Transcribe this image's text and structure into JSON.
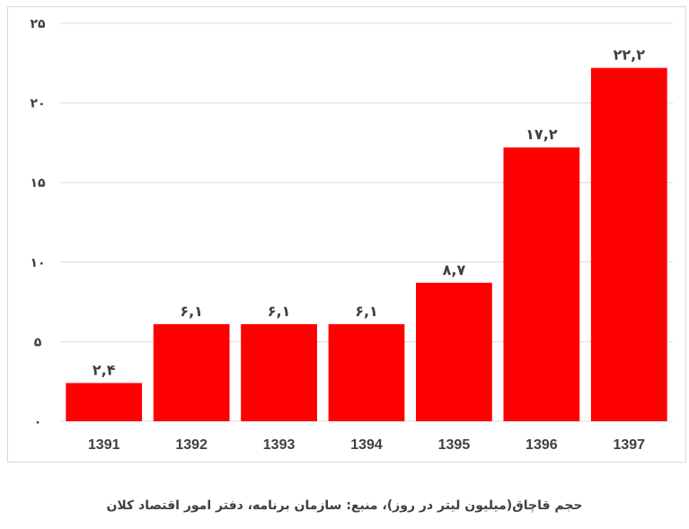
{
  "caption": "حجم قاچاق(میلیون لیتر در روز)، منبع: سازمان برنامه، دفتر امور اقتصاد کلان",
  "colors": {
    "bar": "#ff0000",
    "grid": "#d9d9d9",
    "text": "#404040"
  },
  "chart_data": {
    "type": "bar",
    "categories": [
      "1391",
      "1392",
      "1393",
      "1394",
      "1395",
      "1396",
      "1397"
    ],
    "values": [
      2.4,
      6.1,
      6.1,
      6.1,
      8.7,
      17.2,
      22.2
    ],
    "value_labels": [
      "۲,۴",
      "۶,۱",
      "۶,۱",
      "۶,۱",
      "۸,۷",
      "۱۷,۲",
      "۲۲,۲"
    ],
    "yticks": [
      0,
      5,
      10,
      15,
      20,
      25
    ],
    "ytick_labels": [
      "۰",
      "۵",
      "۱۰",
      "۱۵",
      "۲۰",
      "۲۵"
    ],
    "ylim": [
      0,
      25
    ],
    "grid": true,
    "legend": false
  }
}
